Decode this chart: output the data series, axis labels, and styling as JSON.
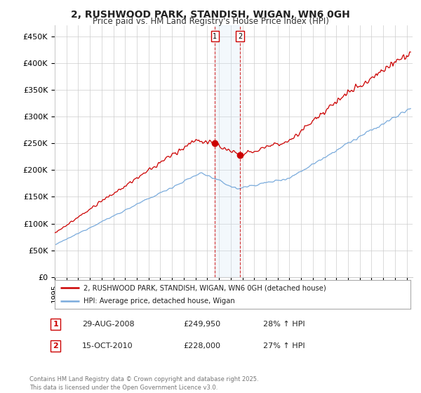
{
  "title": "2, RUSHWOOD PARK, STANDISH, WIGAN, WN6 0GH",
  "subtitle": "Price paid vs. HM Land Registry's House Price Index (HPI)",
  "ylabel_ticks": [
    "£0",
    "£50K",
    "£100K",
    "£150K",
    "£200K",
    "£250K",
    "£300K",
    "£350K",
    "£400K",
    "£450K"
  ],
  "ytick_vals": [
    0,
    50000,
    100000,
    150000,
    200000,
    250000,
    300000,
    350000,
    400000,
    450000
  ],
  "ylim": [
    0,
    470000
  ],
  "xlim_start": 1995.0,
  "xlim_end": 2025.5,
  "legend_line1": "2, RUSHWOOD PARK, STANDISH, WIGAN, WN6 0GH (detached house)",
  "legend_line2": "HPI: Average price, detached house, Wigan",
  "line1_color": "#cc0000",
  "line2_color": "#7aabdc",
  "annotation1_num": "1",
  "annotation1_date": "29-AUG-2008",
  "annotation1_price": "£249,950",
  "annotation1_hpi": "28% ↑ HPI",
  "annotation2_num": "2",
  "annotation2_date": "15-OCT-2010",
  "annotation2_price": "£228,000",
  "annotation2_hpi": "27% ↑ HPI",
  "copyright_text": "Contains HM Land Registry data © Crown copyright and database right 2025.\nThis data is licensed under the Open Government Licence v3.0.",
  "marker1_x": 2008.66,
  "marker2_x": 2010.79,
  "marker1_price": 249950,
  "marker2_price": 228000,
  "background_color": "#ffffff",
  "grid_color": "#cccccc",
  "vspan_color": "#d0e4f5",
  "vline_color": "#cc0000"
}
